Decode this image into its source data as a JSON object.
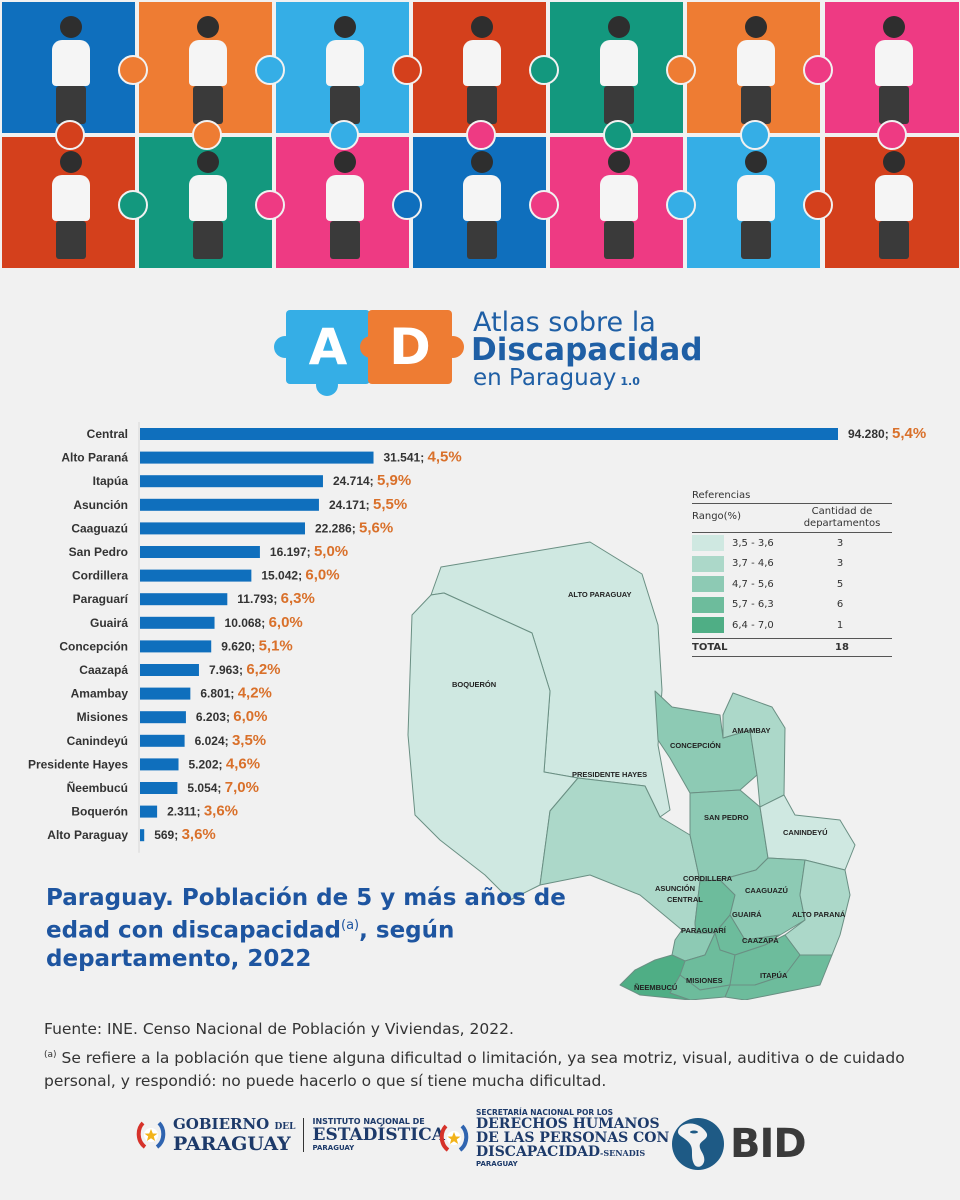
{
  "header": {
    "mosaic_tiles": [
      {
        "color": "#0f6fbd",
        "scene": "amputee-football-player-icon"
      },
      {
        "color": "#ee7c33",
        "scene": "prosthetic-runner-icon"
      },
      {
        "color": "#35aee6",
        "scene": "photographer-icon"
      },
      {
        "color": "#d4401c",
        "scene": "sign-language-icon"
      },
      {
        "color": "#13987e",
        "scene": "wheelchair-user-icon"
      },
      {
        "color": "#ee7c33",
        "scene": "goalball-player-icon"
      },
      {
        "color": "#ee3a83",
        "scene": "photographer-icon"
      },
      {
        "color": "#d4401c",
        "scene": "blind-judo-icon"
      },
      {
        "color": "#13987e",
        "scene": "wheelchair-guitarist-icon"
      },
      {
        "color": "#ee3a83",
        "scene": "swimmer-icon"
      },
      {
        "color": "#0f6fbd",
        "scene": "physiotherapy-icon"
      },
      {
        "color": "#ee3a83",
        "scene": "child-gloves-icon"
      },
      {
        "color": "#35aee6",
        "scene": "guide-dog-icon"
      },
      {
        "color": "#d4401c",
        "scene": "painter-icon"
      }
    ]
  },
  "logo": {
    "letter_a": "A",
    "letter_d": "D",
    "line1": "Atlas sobre la",
    "line2": "Discapacidad",
    "line3": "en Paraguay",
    "version": "1.0"
  },
  "chart_data": {
    "type": "bar",
    "orientation": "horizontal",
    "title": "Paraguay. Población de 5 y más años de edad con discapacidad(a), según departamento, 2022",
    "xlabel": "",
    "ylabel": "",
    "grid": false,
    "categories": [
      "Central",
      "Alto Paraná",
      "Itapúa",
      "Asunción",
      "Caaguazú",
      "San Pedro",
      "Cordillera",
      "Paraguarí",
      "Guairá",
      "Concepción",
      "Caazapá",
      "Amambay",
      "Misiones",
      "Canindeyú",
      "Presidente Hayes",
      "Ñeembucú",
      "Boquerón",
      "Alto Paraguay"
    ],
    "values": [
      94280,
      31541,
      24714,
      24171,
      22286,
      16197,
      15042,
      11793,
      10068,
      9620,
      7963,
      6801,
      6203,
      6024,
      5202,
      5054,
      2311,
      569
    ],
    "value_labels": [
      "94.280",
      "31.541",
      "24.714",
      "24.171",
      "22.286",
      "16.197",
      "15.042",
      "11.793",
      "10.068",
      "9.620",
      "7.963",
      "6.801",
      "6.203",
      "6.024",
      "5.202",
      "5.054",
      "2.311",
      "569"
    ],
    "percent_labels": [
      "5,4%",
      "4,5%",
      "5,9%",
      "5,5%",
      "5,6%",
      "5,0%",
      "6,0%",
      "6,3%",
      "6,0%",
      "5,1%",
      "6,2%",
      "4,2%",
      "6,0%",
      "3,5%",
      "4,6%",
      "7,0%",
      "3,6%",
      "3,6%"
    ],
    "percent_values": [
      5.4,
      4.5,
      5.9,
      5.5,
      5.6,
      5.0,
      6.0,
      6.3,
      6.0,
      5.1,
      6.2,
      4.2,
      6.0,
      3.5,
      4.6,
      7.0,
      3.6,
      3.6
    ],
    "xlim": [
      0,
      94280
    ],
    "bar_color": "#0f6fbd",
    "percent_color": "#d9702a"
  },
  "map": {
    "title": "Choropleth map of Paraguay by department",
    "labels": {
      "alto_paraguay": "ALTO PARAGUAY",
      "boqueron": "BOQUERÓN",
      "presidente_hayes": "PRESIDENTE  HAYES",
      "concepcion": "CONCEPCIÓN",
      "amambay": "AMAMBAY",
      "san_pedro": "SAN PEDRO",
      "canindeyu": "CANINDEYÚ",
      "cordillera": "CORDILLERA",
      "asuncion": "ASUNCIÓN",
      "central": "CENTRAL",
      "caaguazu": "CAAGUAZÚ",
      "guaira": "GUAIRÁ",
      "alto_parana": "ALTO PARANÁ",
      "paraguari": "PARAGUARÍ",
      "caazapa": "CAAZAPÁ",
      "neembucu": "ÑEEMBUCÚ",
      "misiones": "MISIONES",
      "itapua": "ITAPÚA"
    }
  },
  "legend": {
    "title": "Referencias",
    "col1": "Rango(%)",
    "col2": "Cantidad de departamentos",
    "rows": [
      {
        "range": "3,5 - 3,6",
        "count": "3",
        "color": "#cfe8e1"
      },
      {
        "range": "3,7 - 4,6",
        "count": "3",
        "color": "#acd8c9"
      },
      {
        "range": "4,7 - 5,6",
        "count": "5",
        "color": "#8dcab4"
      },
      {
        "range": "5,7 - 6,3",
        "count": "6",
        "color": "#6dbc9c"
      },
      {
        "range": "6,4 - 7,0",
        "count": "1",
        "color": "#4fae85"
      }
    ],
    "total_label": "TOTAL",
    "total_value": "18"
  },
  "title": {
    "part1": "Paraguay. Población de 5 y más años de edad con discapacidad",
    "superscript": "(a)",
    "part2": ", según departamento, 2022"
  },
  "source": "Fuente: INE. Censo Nacional de Población y Viviendas, 2022.",
  "footnote": {
    "marker": "(a)",
    "text": " Se refiere a la población que tiene alguna dificultad o limitación, ya sea motriz, visual, auditiva o de cuidado personal, y respondió: no puede hacerlo o que sí tiene mucha dificultad."
  },
  "footer": {
    "gov_line1": "GOBIERNO",
    "gov_del": "DEL",
    "gov_line2": "PARAGUAY",
    "ine_line1": "INSTITUTO NACIONAL DE",
    "ine_line2": "ESTADÍSTICA",
    "ine_line3": "PARAGUAY",
    "senadis_line1": "SECRETARÍA NACIONAL POR LOS",
    "senadis_line2": "DERECHOS HUMANOS",
    "senadis_line3": "DE LAS PERSONAS CON",
    "senadis_line4": "DISCAPACIDAD",
    "senadis_suffix": "-SENADIS",
    "senadis_line5": "PARAGUAY",
    "bid": "BID"
  }
}
